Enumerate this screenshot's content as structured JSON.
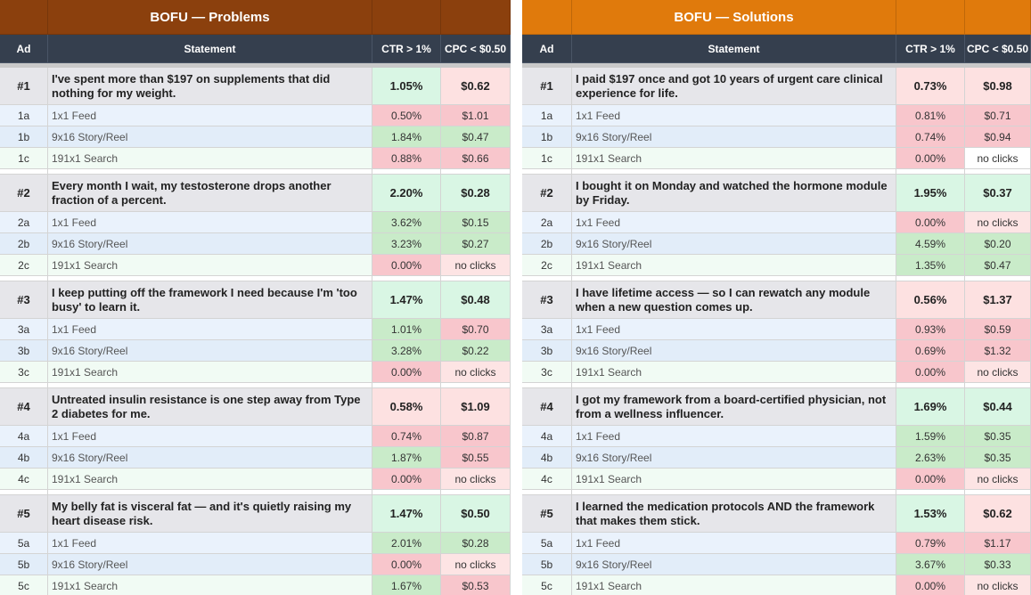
{
  "panels": [
    {
      "title": "BOFU — Problems",
      "title_color": "#8b400d",
      "headers": [
        "Ad",
        "Statement",
        "CTR > 1%",
        "CPC < $0.50"
      ],
      "groups": [
        {
          "ad": "#1",
          "statement": "I've spent more than $197 on supplements that did nothing for my weight.",
          "ctr": "1.05%",
          "cpc": "$0.62",
          "ctr_color": "#d9f6e4",
          "cpc_color": "#fde1e1",
          "variants": [
            {
              "ad": "1a",
              "statement": "1x1 Feed",
              "ctr": "0.50%",
              "cpc": "$1.01",
              "ctr_color": "#f8c6cc",
              "cpc_color": "#f8c6cc"
            },
            {
              "ad": "1b",
              "statement": "9x16 Story/Reel",
              "ctr": "1.84%",
              "cpc": "$0.47",
              "ctr_color": "#c9ebc9",
              "cpc_color": "#c9ebc9"
            },
            {
              "ad": "1c",
              "statement": "191x1 Search",
              "ctr": "0.88%",
              "cpc": "$0.66",
              "ctr_color": "#f8c6cc",
              "cpc_color": "#f8c6cc"
            }
          ]
        },
        {
          "ad": "#2",
          "statement": "Every month I wait, my testosterone drops another fraction of a percent.",
          "ctr": "2.20%",
          "cpc": "$0.28",
          "ctr_color": "#d9f6e4",
          "cpc_color": "#d9f6e4",
          "variants": [
            {
              "ad": "2a",
              "statement": "1x1 Feed",
              "ctr": "3.62%",
              "cpc": "$0.15",
              "ctr_color": "#c9ebc9",
              "cpc_color": "#c9ebc9"
            },
            {
              "ad": "2b",
              "statement": "9x16 Story/Reel",
              "ctr": "3.23%",
              "cpc": "$0.27",
              "ctr_color": "#c9ebc9",
              "cpc_color": "#c9ebc9"
            },
            {
              "ad": "2c",
              "statement": "191x1 Search",
              "ctr": "0.00%",
              "cpc": "no clicks",
              "ctr_color": "#f8c6cc",
              "cpc_color": "#fde4e4"
            }
          ]
        },
        {
          "ad": "#3",
          "statement": "I keep putting off the framework I need because I'm 'too busy' to learn it.",
          "ctr": "1.47%",
          "cpc": "$0.48",
          "ctr_color": "#d9f6e4",
          "cpc_color": "#d9f6e4",
          "variants": [
            {
              "ad": "3a",
              "statement": "1x1 Feed",
              "ctr": "1.01%",
              "cpc": "$0.70",
              "ctr_color": "#c9ebc9",
              "cpc_color": "#f8c6cc"
            },
            {
              "ad": "3b",
              "statement": "9x16 Story/Reel",
              "ctr": "3.28%",
              "cpc": "$0.22",
              "ctr_color": "#c9ebc9",
              "cpc_color": "#c9ebc9"
            },
            {
              "ad": "3c",
              "statement": "191x1 Search",
              "ctr": "0.00%",
              "cpc": "no clicks",
              "ctr_color": "#f8c6cc",
              "cpc_color": "#fde4e4"
            }
          ]
        },
        {
          "ad": "#4",
          "statement": "Untreated insulin resistance is one step away from Type 2 diabetes for me.",
          "ctr": "0.58%",
          "cpc": "$1.09",
          "ctr_color": "#fde1e1",
          "cpc_color": "#fde1e1",
          "variants": [
            {
              "ad": "4a",
              "statement": "1x1 Feed",
              "ctr": "0.74%",
              "cpc": "$0.87",
              "ctr_color": "#f8c6cc",
              "cpc_color": "#f8c6cc"
            },
            {
              "ad": "4b",
              "statement": "9x16 Story/Reel",
              "ctr": "1.87%",
              "cpc": "$0.55",
              "ctr_color": "#c9ebc9",
              "cpc_color": "#f8c6cc"
            },
            {
              "ad": "4c",
              "statement": "191x1 Search",
              "ctr": "0.00%",
              "cpc": "no clicks",
              "ctr_color": "#f8c6cc",
              "cpc_color": "#fde4e4"
            }
          ]
        },
        {
          "ad": "#5",
          "statement": "My belly fat is visceral fat — and it's quietly raising my heart disease risk.",
          "ctr": "1.47%",
          "cpc": "$0.50",
          "ctr_color": "#d9f6e4",
          "cpc_color": "#d9f6e4",
          "variants": [
            {
              "ad": "5a",
              "statement": "1x1 Feed",
              "ctr": "2.01%",
              "cpc": "$0.28",
              "ctr_color": "#c9ebc9",
              "cpc_color": "#c9ebc9"
            },
            {
              "ad": "5b",
              "statement": "9x16 Story/Reel",
              "ctr": "0.00%",
              "cpc": "no clicks",
              "ctr_color": "#f8c6cc",
              "cpc_color": "#fde4e4"
            },
            {
              "ad": "5c",
              "statement": "191x1 Search",
              "ctr": "1.67%",
              "cpc": "$0.53",
              "ctr_color": "#c9ebc9",
              "cpc_color": "#f8c6cc"
            }
          ]
        }
      ]
    },
    {
      "title": "BOFU — Solutions",
      "title_color": "#e07a0c",
      "headers": [
        "Ad",
        "Statement",
        "CTR > 1%",
        "CPC < $0.50"
      ],
      "groups": [
        {
          "ad": "#1",
          "statement": "I paid $197 once and got 10 years of urgent care clinical experience for life.",
          "ctr": "0.73%",
          "cpc": "$0.98",
          "ctr_color": "#fde1e1",
          "cpc_color": "#fde1e1",
          "variants": [
            {
              "ad": "1a",
              "statement": "1x1 Feed",
              "ctr": "0.81%",
              "cpc": "$0.71",
              "ctr_color": "#f8c6cc",
              "cpc_color": "#f8c6cc"
            },
            {
              "ad": "1b",
              "statement": "9x16 Story/Reel",
              "ctr": "0.74%",
              "cpc": "$0.94",
              "ctr_color": "#f8c6cc",
              "cpc_color": "#f8c6cc"
            },
            {
              "ad": "1c",
              "statement": "191x1 Search",
              "ctr": "0.00%",
              "cpc": "no clicks",
              "ctr_color": "#f8c6cc",
              "cpc_color": "#ffffff"
            }
          ]
        },
        {
          "ad": "#2",
          "statement": "I bought it on Monday and watched the hormone module by Friday.",
          "ctr": "1.95%",
          "cpc": "$0.37",
          "ctr_color": "#d9f6e4",
          "cpc_color": "#d9f6e4",
          "variants": [
            {
              "ad": "2a",
              "statement": "1x1 Feed",
              "ctr": "0.00%",
              "cpc": "no clicks",
              "ctr_color": "#f8c6cc",
              "cpc_color": "#fde4e4"
            },
            {
              "ad": "2b",
              "statement": "9x16 Story/Reel",
              "ctr": "4.59%",
              "cpc": "$0.20",
              "ctr_color": "#c9ebc9",
              "cpc_color": "#c9ebc9"
            },
            {
              "ad": "2c",
              "statement": "191x1 Search",
              "ctr": "1.35%",
              "cpc": "$0.47",
              "ctr_color": "#c9ebc9",
              "cpc_color": "#c9ebc9"
            }
          ]
        },
        {
          "ad": "#3",
          "statement": "I have lifetime access — so I can rewatch any module when a new question comes up.",
          "ctr": "0.56%",
          "cpc": "$1.37",
          "ctr_color": "#fde1e1",
          "cpc_color": "#fde1e1",
          "variants": [
            {
              "ad": "3a",
              "statement": "1x1 Feed",
              "ctr": "0.93%",
              "cpc": "$0.59",
              "ctr_color": "#f8c6cc",
              "cpc_color": "#f8c6cc"
            },
            {
              "ad": "3b",
              "statement": "9x16 Story/Reel",
              "ctr": "0.69%",
              "cpc": "$1.32",
              "ctr_color": "#f8c6cc",
              "cpc_color": "#f8c6cc"
            },
            {
              "ad": "3c",
              "statement": "191x1 Search",
              "ctr": "0.00%",
              "cpc": "no clicks",
              "ctr_color": "#f8c6cc",
              "cpc_color": "#fde4e4"
            }
          ]
        },
        {
          "ad": "#4",
          "statement": "I got my framework from a board-certified physician, not from a wellness influencer.",
          "ctr": "1.69%",
          "cpc": "$0.44",
          "ctr_color": "#d9f6e4",
          "cpc_color": "#d9f6e4",
          "variants": [
            {
              "ad": "4a",
              "statement": "1x1 Feed",
              "ctr": "1.59%",
              "cpc": "$0.35",
              "ctr_color": "#c9ebc9",
              "cpc_color": "#c9ebc9"
            },
            {
              "ad": "4b",
              "statement": "9x16 Story/Reel",
              "ctr": "2.63%",
              "cpc": "$0.35",
              "ctr_color": "#c9ebc9",
              "cpc_color": "#c9ebc9"
            },
            {
              "ad": "4c",
              "statement": "191x1 Search",
              "ctr": "0.00%",
              "cpc": "no clicks",
              "ctr_color": "#f8c6cc",
              "cpc_color": "#fde4e4"
            }
          ]
        },
        {
          "ad": "#5",
          "statement": "I learned the medication protocols AND the framework that makes them stick.",
          "ctr": "1.53%",
          "cpc": "$0.62",
          "ctr_color": "#d9f6e4",
          "cpc_color": "#fde1e1",
          "variants": [
            {
              "ad": "5a",
              "statement": "1x1 Feed",
              "ctr": "0.79%",
              "cpc": "$1.17",
              "ctr_color": "#f8c6cc",
              "cpc_color": "#f8c6cc"
            },
            {
              "ad": "5b",
              "statement": "9x16 Story/Reel",
              "ctr": "3.67%",
              "cpc": "$0.33",
              "ctr_color": "#c9ebc9",
              "cpc_color": "#c9ebc9"
            },
            {
              "ad": "5c",
              "statement": "191x1 Search",
              "ctr": "0.00%",
              "cpc": "no clicks",
              "ctr_color": "#f8c6cc",
              "cpc_color": "#fde4e4"
            }
          ]
        }
      ]
    }
  ]
}
